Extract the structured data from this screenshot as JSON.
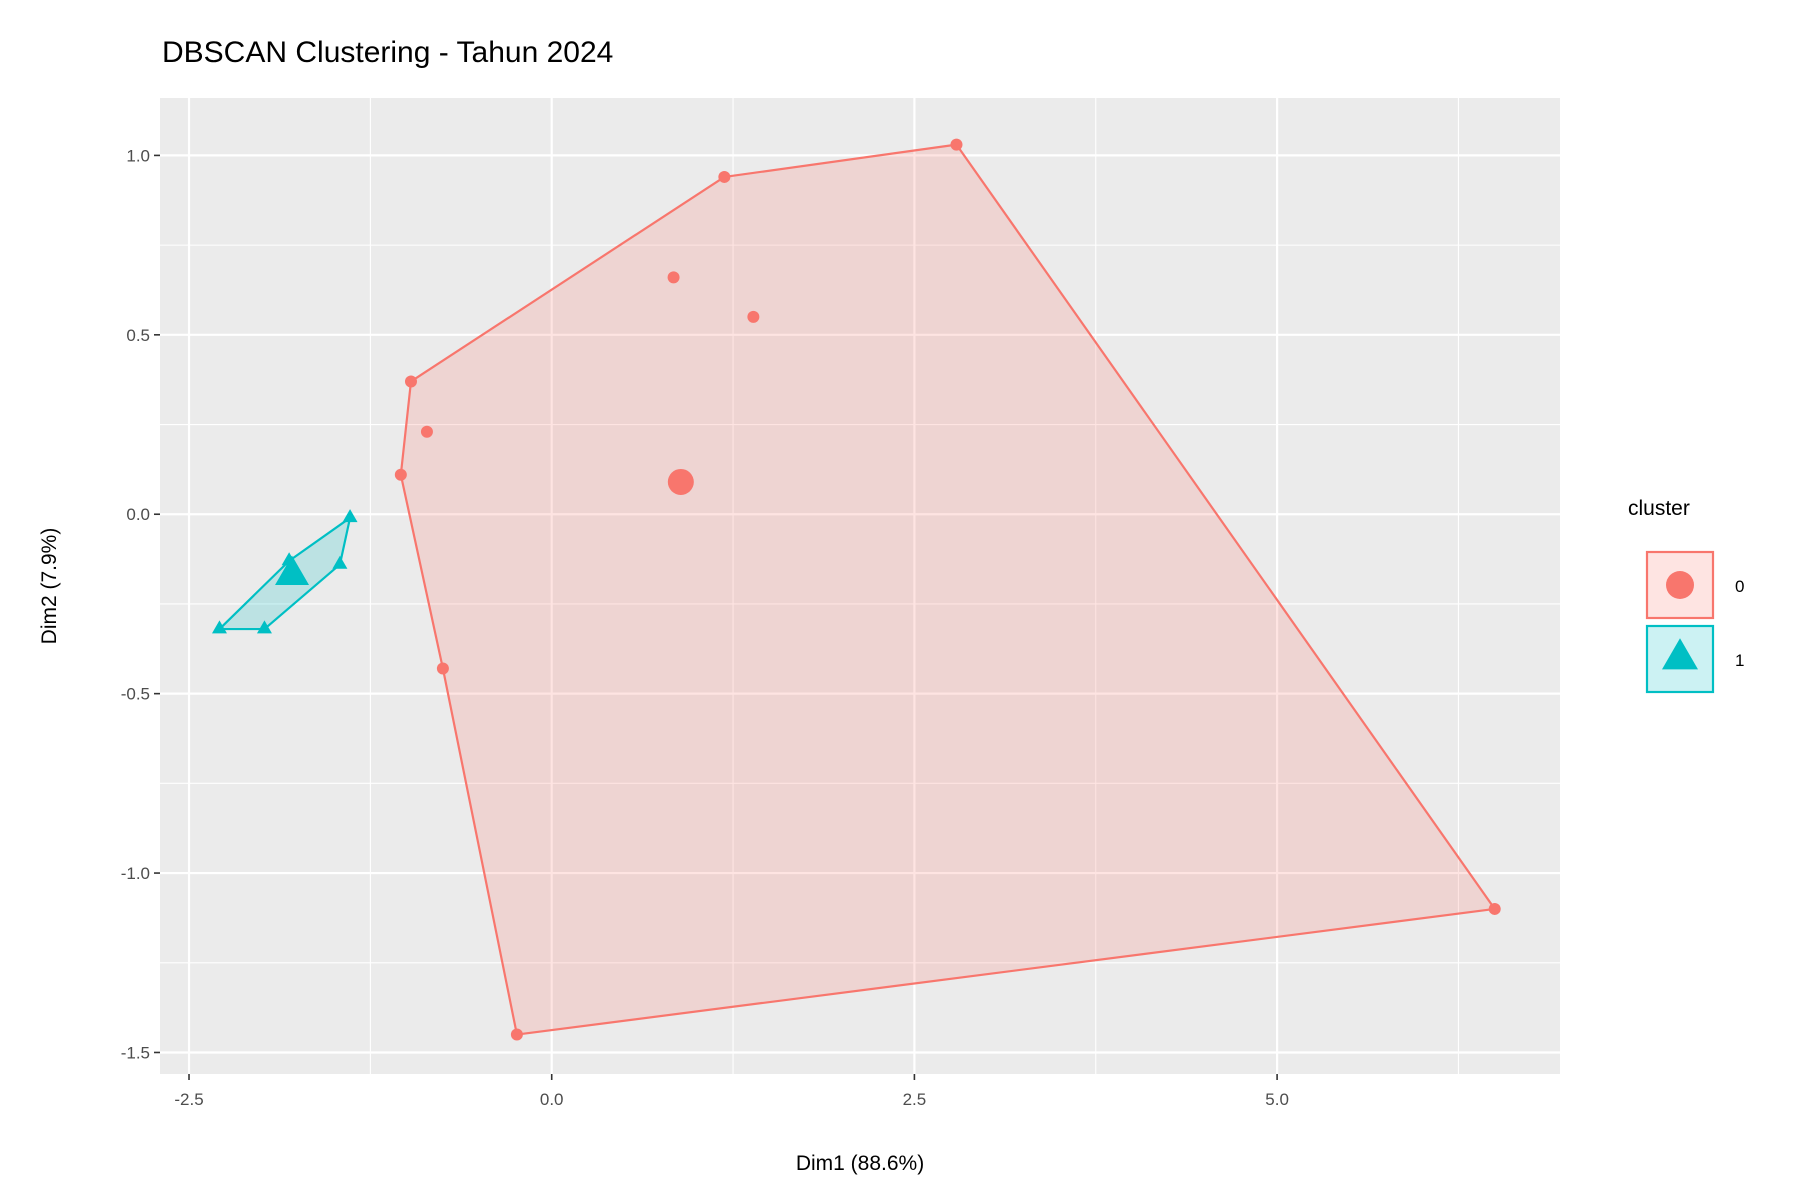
{
  "chart_data": {
    "type": "scatter",
    "title": "DBSCAN Clustering - Tahun 2024",
    "xlabel": "Dim1 (88.6%)",
    "ylabel": "Dim2 (7.9%)",
    "xlim": [
      -2.7,
      6.95
    ],
    "ylim": [
      -1.56,
      1.16
    ],
    "x_ticks": [
      -2.5,
      0.0,
      2.5,
      5.0
    ],
    "x_tick_labels": [
      "-2.5",
      "0.0",
      "2.5",
      "5.0"
    ],
    "y_ticks": [
      -1.5,
      -1.0,
      -0.5,
      0.0,
      0.5,
      1.0
    ],
    "y_tick_labels": [
      "-1.5",
      "-1.0",
      "-0.5",
      "0.0",
      "0.5",
      "1.0"
    ],
    "grid": true,
    "legend": {
      "title": "cluster",
      "position": "right"
    },
    "series": [
      {
        "name": "0",
        "color": "#F8766D",
        "shape": "circle",
        "points": [
          {
            "x": -0.97,
            "y": 0.37
          },
          {
            "x": 1.19,
            "y": 0.94
          },
          {
            "x": 2.79,
            "y": 1.03
          },
          {
            "x": 0.84,
            "y": 0.66
          },
          {
            "x": 1.39,
            "y": 0.55
          },
          {
            "x": -0.86,
            "y": 0.23
          },
          {
            "x": -1.04,
            "y": 0.11
          },
          {
            "x": -0.75,
            "y": -0.43
          },
          {
            "x": -0.24,
            "y": -1.45
          },
          {
            "x": 6.5,
            "y": -1.1
          }
        ],
        "centroid": {
          "x": 0.89,
          "y": 0.09
        },
        "hull": [
          {
            "x": -0.97,
            "y": 0.37
          },
          {
            "x": 1.19,
            "y": 0.94
          },
          {
            "x": 2.79,
            "y": 1.03
          },
          {
            "x": 6.5,
            "y": -1.1
          },
          {
            "x": -0.24,
            "y": -1.45
          },
          {
            "x": -0.75,
            "y": -0.43
          },
          {
            "x": -1.04,
            "y": 0.11
          }
        ]
      },
      {
        "name": "1",
        "color": "#00BFC4",
        "shape": "triangle",
        "points": [
          {
            "x": -1.39,
            "y": -0.01
          },
          {
            "x": -1.81,
            "y": -0.13
          },
          {
            "x": -1.46,
            "y": -0.14
          },
          {
            "x": -2.29,
            "y": -0.32
          },
          {
            "x": -1.98,
            "y": -0.32
          }
        ],
        "centroid": {
          "x": -1.79,
          "y": -0.17
        },
        "hull": [
          {
            "x": -1.39,
            "y": -0.01
          },
          {
            "x": -1.46,
            "y": -0.14
          },
          {
            "x": -1.98,
            "y": -0.32
          },
          {
            "x": -2.29,
            "y": -0.32
          },
          {
            "x": -1.81,
            "y": -0.13
          }
        ]
      }
    ]
  }
}
